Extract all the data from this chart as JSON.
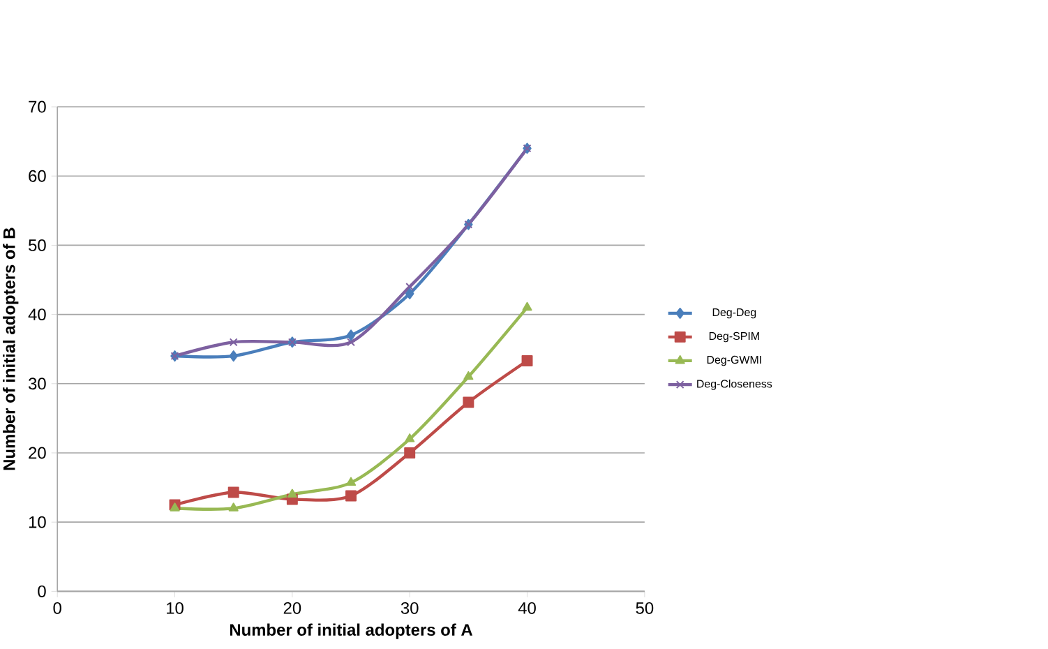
{
  "chart_data": {
    "type": "line",
    "xlabel": "Number of initial adopters of A",
    "ylabel": "Number of initial adopters of B",
    "x": [
      10,
      15,
      20,
      25,
      30,
      35,
      40
    ],
    "series": [
      {
        "name": "Deg-Deg",
        "color": "#4a7ebb",
        "marker": "diamond",
        "values": [
          34,
          34,
          36,
          37,
          43,
          53,
          64
        ]
      },
      {
        "name": "Deg-SPIM",
        "color": "#be4b48",
        "marker": "square",
        "values": [
          12.5,
          14.3,
          13.3,
          13.8,
          20,
          27.3,
          33.3
        ]
      },
      {
        "name": "Deg-GWMI",
        "color": "#98b954",
        "marker": "triangle",
        "values": [
          12,
          12,
          14,
          15.7,
          22,
          31,
          41
        ]
      },
      {
        "name": "Deg-Closeness",
        "color": "#7d60a0",
        "marker": "cross",
        "values": [
          34,
          36,
          36,
          36,
          44,
          53,
          64
        ]
      }
    ],
    "xlim": [
      0,
      50
    ],
    "xticks": [
      0,
      10,
      20,
      30,
      40,
      50
    ],
    "ylim": [
      0,
      70
    ],
    "yticks": [
      0,
      10,
      20,
      30,
      40,
      50,
      60,
      70
    ],
    "grid": "y",
    "legend": "right"
  }
}
